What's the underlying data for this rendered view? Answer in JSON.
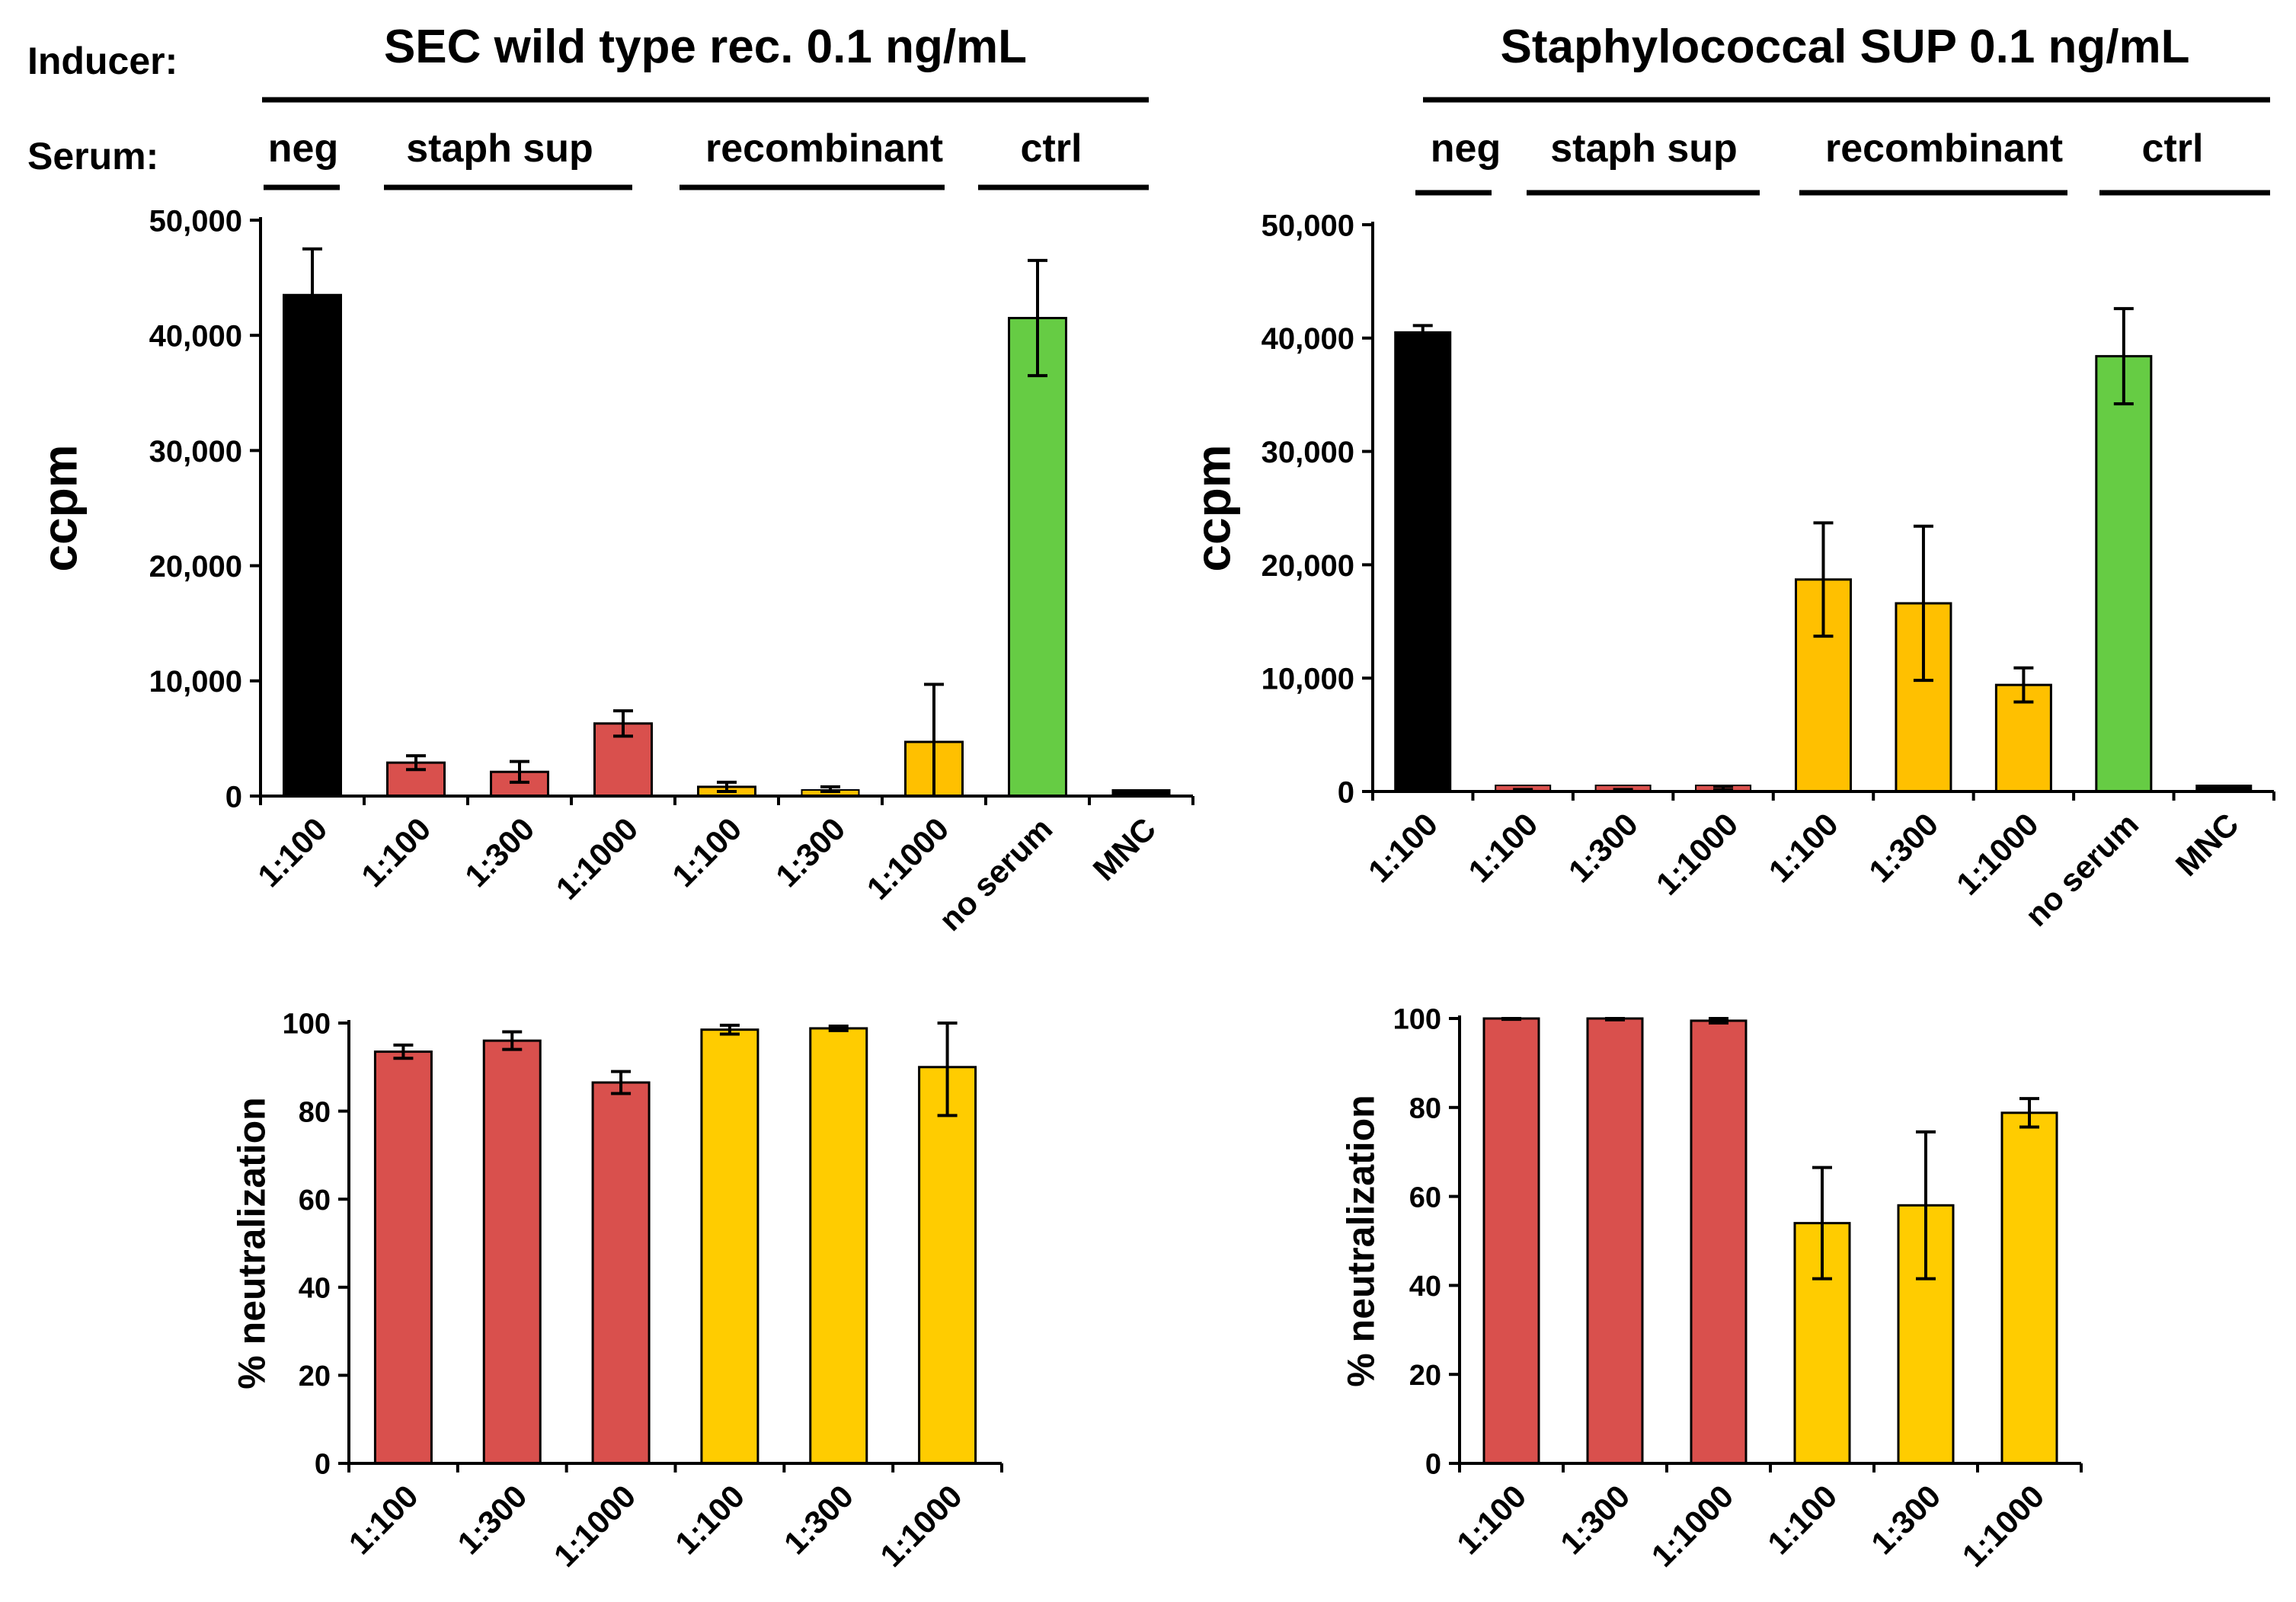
{
  "row_labels": {
    "inducer": "Inducer:",
    "serum": "Serum:"
  },
  "panels": [
    {
      "id": "left",
      "inducer": "SEC wild type rec. 0.1 ng/mL",
      "serum_groups": [
        "neg",
        "staph sup",
        "recombinant",
        "ctrl"
      ]
    },
    {
      "id": "right",
      "inducer": "Staphylococcal SUP 0.1 ng/mL",
      "serum_groups": [
        "neg",
        "staph sup",
        "recombinant",
        "ctrl"
      ]
    }
  ],
  "colors": {
    "neg": "#000000",
    "staph": "#d9504d",
    "recombinant_top": "#ffc000",
    "recombinant_bottom": "#ffcc00",
    "ctrl": "#66cc44",
    "mnc": "#000000"
  },
  "chart_data": [
    {
      "id": "top-left",
      "type": "bar",
      "title": "SEC wild type rec. 0.1 ng/mL",
      "ylabel": "ccpm",
      "xlabel": "",
      "ylim": [
        0,
        50000
      ],
      "yticks": [
        0,
        10000,
        20000,
        30000,
        40000,
        50000
      ],
      "ytick_labels": [
        "0",
        "10,000",
        "20,000",
        "30,000",
        "40,000",
        "50,000"
      ],
      "categories": [
        "1:100",
        "1:100",
        "1:300",
        "1:1000",
        "1:100",
        "1:300",
        "1:1000",
        "no serum",
        "MNC"
      ],
      "groups": [
        "neg",
        "staph sup",
        "staph sup",
        "staph sup",
        "recombinant",
        "recombinant",
        "recombinant",
        "ctrl",
        "ctrl"
      ],
      "values": [
        43500,
        2900,
        2100,
        6300,
        800,
        600,
        4700,
        41500,
        300
      ],
      "errors": [
        4000,
        600,
        900,
        1100,
        400,
        200,
        5000,
        5000,
        100
      ],
      "color_keys": [
        "neg",
        "staph",
        "staph",
        "staph",
        "recombinant_top",
        "recombinant_top",
        "recombinant_top",
        "ctrl",
        "mnc"
      ]
    },
    {
      "id": "top-right",
      "type": "bar",
      "title": "Staphylococcal SUP 0.1 ng/mL",
      "ylabel": "ccpm",
      "xlabel": "",
      "ylim": [
        0,
        50000
      ],
      "yticks": [
        0,
        10000,
        20000,
        30000,
        40000,
        50000
      ],
      "ytick_labels": [
        "0",
        "10,000",
        "20,000",
        "30,000",
        "40,000",
        "50,000"
      ],
      "categories": [
        "1:100",
        "1:100",
        "1:300",
        "1:1000",
        "1:100",
        "1:300",
        "1:1000",
        "no serum",
        "MNC"
      ],
      "groups": [
        "neg",
        "staph sup",
        "staph sup",
        "staph sup",
        "recombinant",
        "recombinant",
        "recombinant",
        "ctrl",
        "ctrl"
      ],
      "values": [
        40500,
        100,
        100,
        300,
        18700,
        16600,
        9400,
        38400,
        300
      ],
      "errors": [
        600,
        80,
        80,
        150,
        5000,
        6800,
        1500,
        4200,
        100
      ],
      "color_keys": [
        "neg",
        "staph",
        "staph",
        "staph",
        "recombinant_top",
        "recombinant_top",
        "recombinant_top",
        "ctrl",
        "mnc"
      ]
    },
    {
      "id": "bottom-left",
      "type": "bar",
      "title": "",
      "ylabel": "% neutralization",
      "xlabel": "",
      "ylim": [
        0,
        100
      ],
      "yticks": [
        0,
        20,
        40,
        60,
        80,
        100
      ],
      "ytick_labels": [
        "0",
        "20",
        "40",
        "60",
        "80",
        "100"
      ],
      "categories": [
        "1:100",
        "1:300",
        "1:1000",
        "1:100",
        "1:300",
        "1:1000"
      ],
      "groups": [
        "staph sup",
        "staph sup",
        "staph sup",
        "recombinant",
        "recombinant",
        "recombinant"
      ],
      "values": [
        93.5,
        96,
        86.5,
        98.5,
        98.8,
        90
      ],
      "errors": [
        1.5,
        2,
        2.5,
        1,
        0.5,
        11
      ],
      "color_keys": [
        "staph",
        "staph",
        "staph",
        "recombinant_bottom",
        "recombinant_bottom",
        "recombinant_bottom"
      ]
    },
    {
      "id": "bottom-right",
      "type": "bar",
      "title": "",
      "ylabel": "% neutralization",
      "xlabel": "",
      "ylim": [
        0,
        100
      ],
      "yticks": [
        0,
        20,
        40,
        60,
        80,
        100
      ],
      "ytick_labels": [
        "0",
        "20",
        "40",
        "60",
        "80",
        "100"
      ],
      "categories": [
        "1:100",
        "1:300",
        "1:1000",
        "1:100",
        "1:300",
        "1:1000"
      ],
      "groups": [
        "staph sup",
        "staph sup",
        "staph sup",
        "recombinant",
        "recombinant",
        "recombinant"
      ],
      "values": [
        100,
        100,
        99.5,
        54,
        58,
        78.8
      ],
      "errors": [
        0.2,
        0.3,
        0.5,
        12.5,
        16.5,
        3.2
      ],
      "color_keys": [
        "staph",
        "staph",
        "staph",
        "recombinant_bottom",
        "recombinant_bottom",
        "recombinant_bottom"
      ]
    }
  ]
}
